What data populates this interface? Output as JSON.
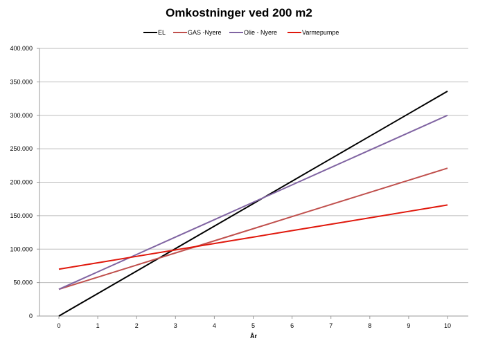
{
  "chart_data": {
    "type": "line",
    "title": "Omkostninger ved 200 m2",
    "xlabel": "År",
    "ylabel": "",
    "x": [
      0,
      1,
      2,
      3,
      4,
      5,
      6,
      7,
      8,
      9,
      10
    ],
    "xlim": [
      0,
      10
    ],
    "ylim": [
      0,
      400000
    ],
    "yticks": [
      0,
      50000,
      100000,
      150000,
      200000,
      250000,
      300000,
      350000,
      400000
    ],
    "ytick_labels": [
      "0",
      "50.000",
      "100.000",
      "150.000",
      "200.000",
      "250.000",
      "300.000",
      "350.000",
      "400.000"
    ],
    "xtick_labels": [
      "0",
      "1",
      "2",
      "3",
      "4",
      "5",
      "6",
      "7",
      "8",
      "9",
      "10"
    ],
    "grid": true,
    "legend_position": "top",
    "series": [
      {
        "name": "EL",
        "color": "#000000",
        "values": [
          0,
          33600,
          67200,
          100800,
          134400,
          168000,
          201600,
          235200,
          268800,
          302400,
          336000
        ]
      },
      {
        "name": "GAS -Nyere",
        "color": "#c0504d",
        "values": [
          40000,
          58100,
          76200,
          94300,
          112400,
          130500,
          148600,
          166700,
          184800,
          202900,
          221000
        ]
      },
      {
        "name": "Olie - Nyere",
        "color": "#8064a2",
        "values": [
          40000,
          66000,
          92000,
          118000,
          144000,
          170000,
          196000,
          222000,
          248000,
          274000,
          300000
        ]
      },
      {
        "name": "Varmepumpe",
        "color": "#e0180c",
        "values": [
          70000,
          79600,
          89200,
          98800,
          108400,
          118000,
          127600,
          137200,
          146800,
          156400,
          166000
        ]
      }
    ]
  }
}
